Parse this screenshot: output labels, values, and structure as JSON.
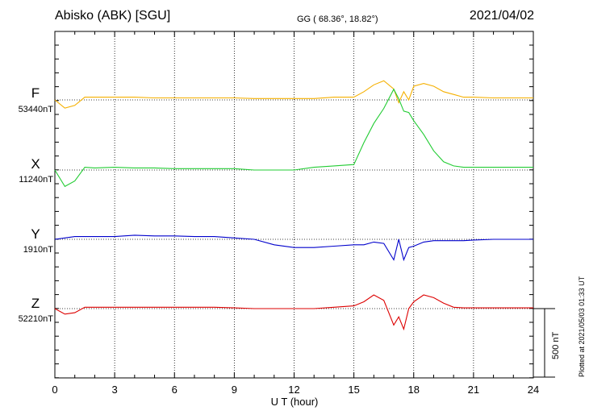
{
  "header": {
    "station": "Abisko (ABK)  [SGU]",
    "coords": "GG ( 68.36°,  18.82°)",
    "date": "2021/04/02"
  },
  "footer": {
    "plotted": "Plotted at 2021/05/03 01:33 UT"
  },
  "chart_data": {
    "type": "line",
    "xlabel": "U T (hour)",
    "xlim": [
      0,
      24
    ],
    "xticks": [
      "0",
      "3",
      "6",
      "9",
      "12",
      "15",
      "18",
      "21",
      "24"
    ],
    "grid": true,
    "scale_bar": {
      "value_nT": 500,
      "label": "500 nT"
    },
    "x": [
      0,
      0.5,
      1,
      1.5,
      2,
      3,
      4,
      5,
      6,
      7,
      8,
      9,
      10,
      11,
      12,
      13,
      14,
      15,
      15.5,
      16,
      16.5,
      17,
      17.25,
      17.5,
      17.75,
      18,
      18.5,
      19,
      19.5,
      20,
      20.5,
      21,
      22,
      23,
      24
    ],
    "series": [
      {
        "name": "F",
        "baseline_label": "53440nT",
        "color": "#f5b000",
        "values": [
          0,
          -60,
          -40,
          20,
          20,
          20,
          20,
          15,
          15,
          15,
          15,
          15,
          10,
          10,
          10,
          10,
          20,
          20,
          60,
          110,
          140,
          80,
          -20,
          60,
          0,
          100,
          120,
          100,
          60,
          40,
          20,
          20,
          15,
          15,
          15
        ]
      },
      {
        "name": "X",
        "baseline_label": "11240nT",
        "color": "#22cc33",
        "values": [
          0,
          -120,
          -80,
          20,
          15,
          20,
          15,
          15,
          10,
          10,
          10,
          10,
          0,
          0,
          0,
          20,
          30,
          40,
          200,
          340,
          450,
          590,
          520,
          430,
          420,
          360,
          260,
          140,
          60,
          30,
          20,
          20,
          20,
          20,
          20
        ]
      },
      {
        "name": "Y",
        "baseline_label": "1910nT",
        "color": "#0000cc",
        "values": [
          0,
          10,
          20,
          20,
          20,
          20,
          30,
          25,
          25,
          20,
          20,
          10,
          0,
          -40,
          -60,
          -60,
          -50,
          -40,
          -40,
          -20,
          -30,
          -150,
          0,
          -150,
          -60,
          -50,
          -20,
          -10,
          -10,
          -10,
          -10,
          -5,
          0,
          0,
          0
        ]
      },
      {
        "name": "Z",
        "baseline_label": "52210nT",
        "color": "#dd0000",
        "values": [
          0,
          -40,
          -30,
          10,
          10,
          10,
          10,
          10,
          10,
          10,
          10,
          5,
          0,
          0,
          0,
          0,
          10,
          20,
          50,
          100,
          60,
          -120,
          -60,
          -150,
          0,
          50,
          100,
          80,
          40,
          10,
          5,
          5,
          5,
          5,
          5
        ]
      }
    ]
  }
}
